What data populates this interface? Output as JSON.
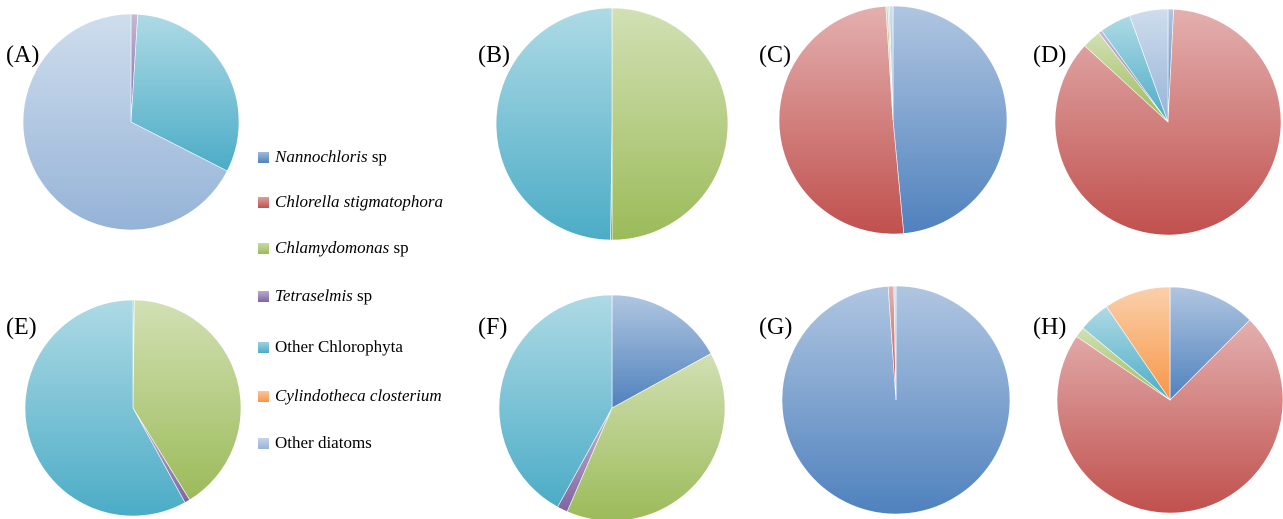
{
  "colors": {
    "nannochloris": "#4F81BD",
    "chlorella": "#C0504D",
    "chlamydomonas": "#9BBB59",
    "tetraselmis": "#8064A2",
    "other_chlorophyta": "#4BACC6",
    "cylindotheca": "#F79646",
    "other_diatoms": "#95B3D7"
  },
  "legend": [
    {
      "key": "nannochloris",
      "italic": "Nannochloris",
      "rest": " sp"
    },
    {
      "key": "chlorella",
      "italic": "Chlorella stigmatophora",
      "rest": ""
    },
    {
      "key": "chlamydomonas",
      "italic": "Chlamydomonas",
      "rest": " sp"
    },
    {
      "key": "tetraselmis",
      "italic": "Tetraselmis",
      "rest": " sp"
    },
    {
      "key": "other_chlorophyta",
      "italic": "",
      "rest": "Other Chlorophyta"
    },
    {
      "key": "cylindotheca",
      "italic": "Cylindotheca closterium",
      "rest": ""
    },
    {
      "key": "other_diatoms",
      "italic": "",
      "rest": "Other diatoms"
    }
  ],
  "chart_data": [
    {
      "type": "pie",
      "label": "(A)",
      "categories": [
        "Nannochloris sp",
        "Chlorella stigmatophora",
        "Chlamydomonas sp",
        "Tetraselmis sp",
        "Other Chlorophyta",
        "Cylindotheca closterium",
        "Other diatoms"
      ],
      "values": [
        0,
        0,
        0,
        1,
        31.5,
        0,
        67.5
      ]
    },
    {
      "type": "pie",
      "label": "(B)",
      "categories": [
        "Nannochloris sp",
        "Chlorella stigmatophora",
        "Chlamydomonas sp",
        "Tetraselmis sp",
        "Other Chlorophyta",
        "Cylindotheca closterium",
        "Other diatoms"
      ],
      "values": [
        0,
        0,
        50,
        0.2,
        49.8,
        0,
        0
      ]
    },
    {
      "type": "pie",
      "label": "(C)",
      "categories": [
        "Nannochloris sp",
        "Chlorella stigmatophora",
        "Chlamydomonas sp",
        "Tetraselmis sp",
        "Other Chlorophyta",
        "Cylindotheca closterium",
        "Other diatoms"
      ],
      "values": [
        48.5,
        50.5,
        0.3,
        0,
        0.2,
        0,
        0.5
      ]
    },
    {
      "type": "pie",
      "label": "(D)",
      "categories": [
        "Nannochloris sp",
        "Chlorella stigmatophora",
        "Chlamydomonas sp",
        "Tetraselmis sp",
        "Other Chlorophyta",
        "Cylindotheca closterium",
        "Other diatoms"
      ],
      "values": [
        0.8,
        86,
        2.7,
        0.5,
        4.5,
        0,
        5.5
      ]
    },
    {
      "type": "pie",
      "label": "(E)",
      "categories": [
        "Nannochloris sp",
        "Chlorella stigmatophora",
        "Chlamydomonas sp",
        "Tetraselmis sp",
        "Other Chlorophyta",
        "Cylindotheca closterium",
        "Other diatoms"
      ],
      "values": [
        0,
        0.2,
        41,
        0.8,
        58,
        0,
        0
      ]
    },
    {
      "type": "pie",
      "label": "(F)",
      "categories": [
        "Nannochloris sp",
        "Chlorella stigmatophora",
        "Chlamydomonas sp",
        "Tetraselmis sp",
        "Other Chlorophyta",
        "Cylindotheca closterium",
        "Other diatoms"
      ],
      "values": [
        17,
        0,
        39.5,
        1.5,
        42,
        0,
        0
      ]
    },
    {
      "type": "pie",
      "label": "(G)",
      "categories": [
        "Nannochloris sp",
        "Chlorella stigmatophora",
        "Chlamydomonas sp",
        "Tetraselmis sp",
        "Other Chlorophyta",
        "Cylindotheca closterium",
        "Other diatoms"
      ],
      "values": [
        98.9,
        0.8,
        0,
        0,
        0,
        0,
        0.3
      ]
    },
    {
      "type": "pie",
      "label": "(H)",
      "categories": [
        "Nannochloris sp",
        "Chlorella stigmatophora",
        "Chlamydomonas sp",
        "Tetraselmis sp",
        "Other Chlorophyta",
        "Cylindotheca closterium",
        "Other diatoms"
      ],
      "values": [
        12.5,
        72,
        1.5,
        0,
        4.5,
        9.5,
        0
      ]
    }
  ]
}
